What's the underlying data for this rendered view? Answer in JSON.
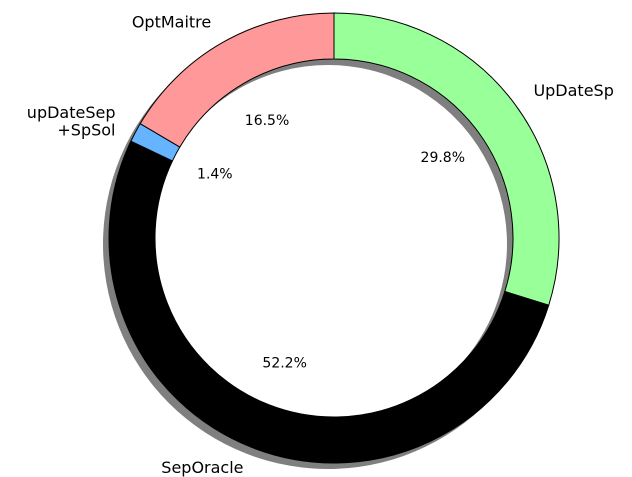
{
  "chart_data": {
    "type": "donut",
    "categories": [
      "UpDateSp",
      "SepOracle",
      "upDateSep\n+SpSol",
      "OptMaitre"
    ],
    "values": [
      29.8,
      52.2,
      1.4,
      16.5
    ],
    "value_labels": [
      "29.8%",
      "52.2%",
      "1.4%",
      "16.5%"
    ],
    "colors": [
      "#99ff99",
      "#000000",
      "#66b3ff",
      "#ff9999"
    ],
    "shadow": true
  }
}
